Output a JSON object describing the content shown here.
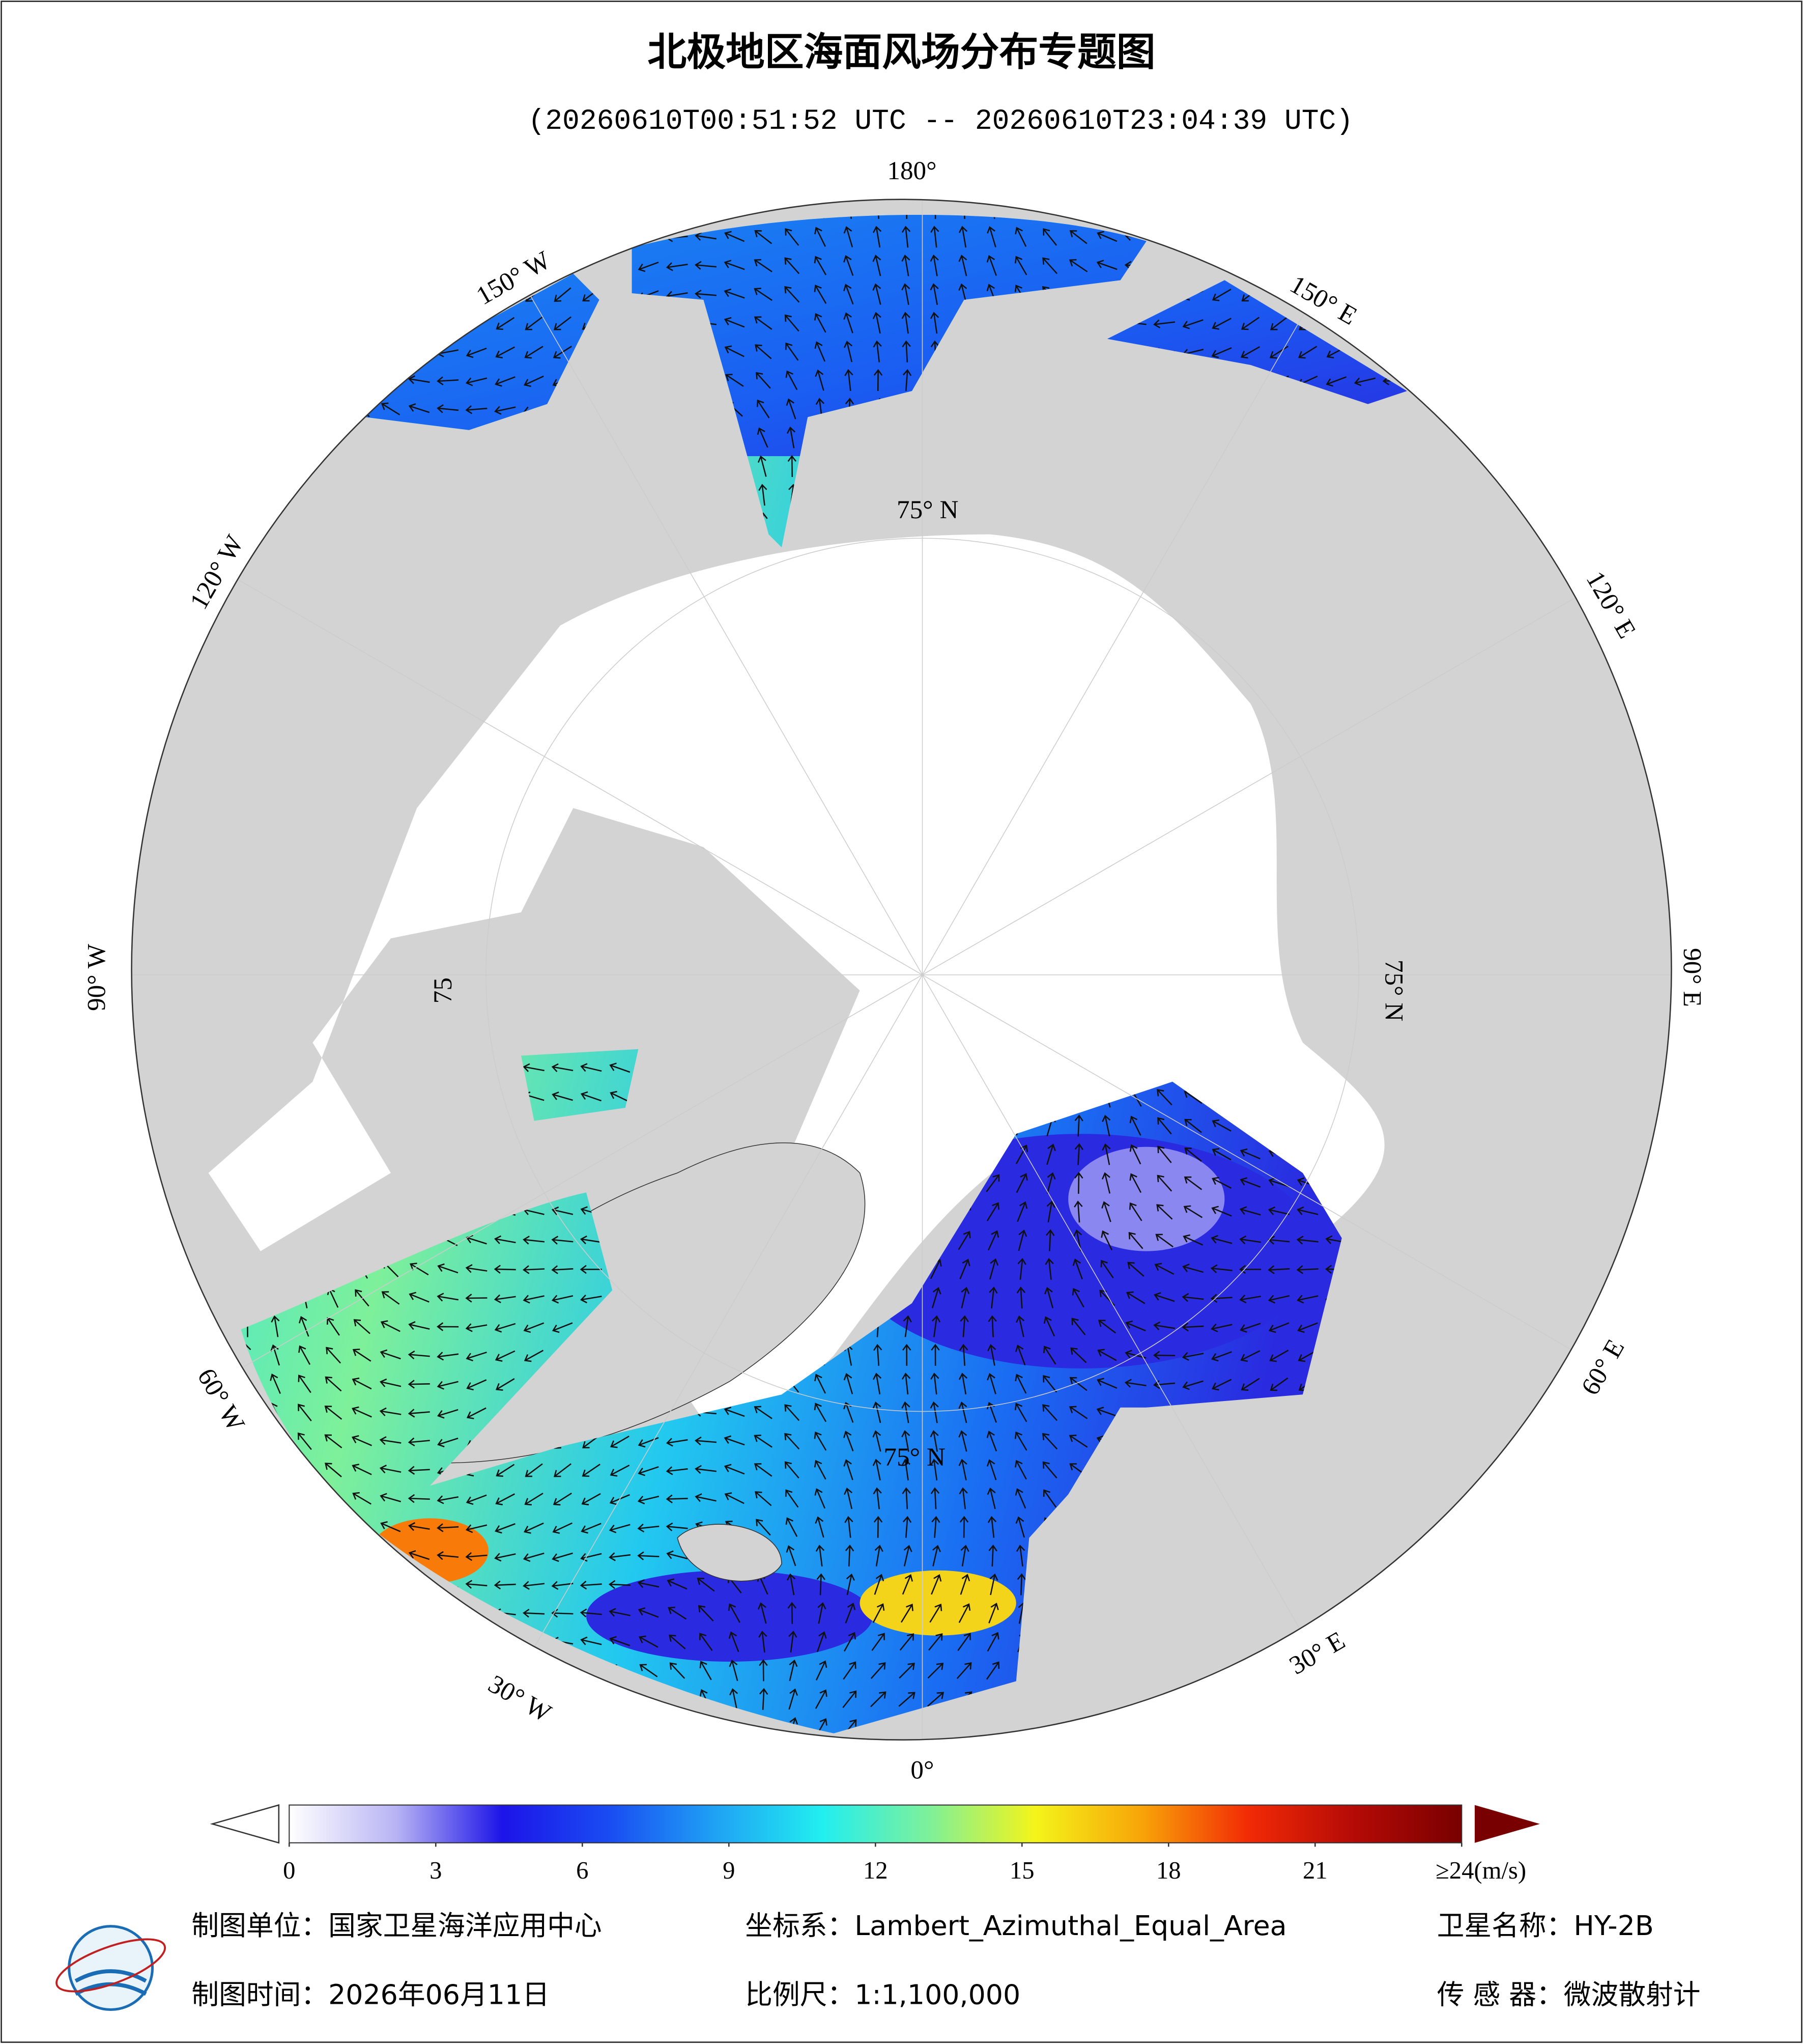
{
  "header": {
    "title": "北极地区海面风场分布专题图",
    "subtitle": "(20260610T00:51:52 UTC -- 20260610T23:04:39 UTC)"
  },
  "map": {
    "longitude_labels": [
      "180°",
      "150° E",
      "120° E",
      "90° E",
      "60° E",
      "30° E",
      "0°",
      "30° W",
      "60° W",
      "90° W",
      "120° W",
      "150° W"
    ],
    "latitude_labels": [
      "75° N",
      "75° N",
      "75° N",
      "75"
    ]
  },
  "colorbar": {
    "range": [
      0,
      24
    ],
    "ticks": [
      0,
      3,
      6,
      9,
      12,
      15,
      18,
      21,
      {
        "value": 24,
        "label": "≥24(m/s)"
      }
    ],
    "colors": [
      "#ffffff",
      "#b8b4f4",
      "#1c14e8",
      "#1a4cf2",
      "#1fa2f4",
      "#22eef0",
      "#7ef09a",
      "#f4f41a",
      "#f8a408",
      "#f22a06",
      "#b40a06",
      "#780000"
    ]
  },
  "footer": {
    "unit": "制图单位：国家卫星海洋应用中心",
    "crs": "坐标系：Lambert_Azimuthal_Equal_Area",
    "satellite": "卫星名称：HY-2B",
    "date": "制图时间：2026年06月11日",
    "scale": "比例尺：1:1,100,000",
    "sensor": "传 感 器：微波散射计"
  }
}
